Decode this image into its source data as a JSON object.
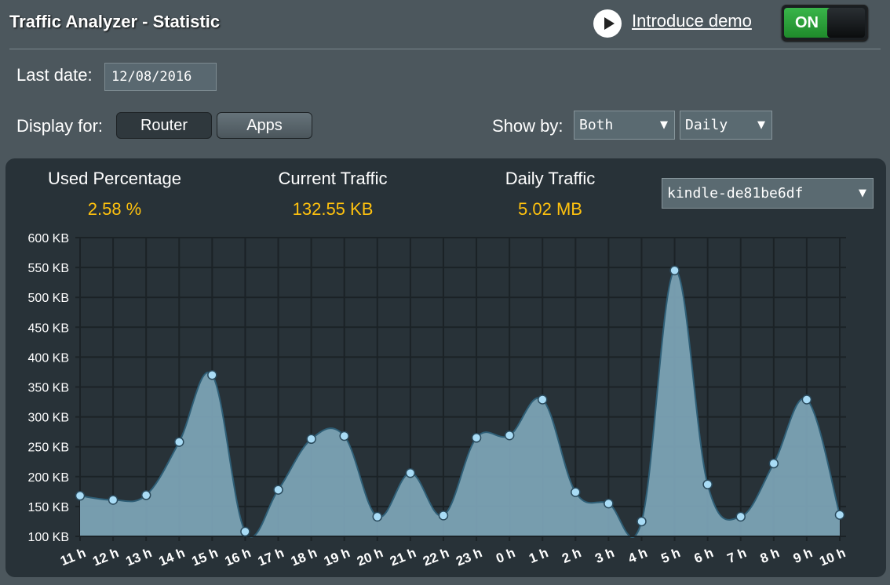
{
  "header": {
    "title": "Traffic Analyzer - Statistic",
    "demo_link": "Introduce demo",
    "toggle_label": "ON"
  },
  "filters": {
    "last_date_label": "Last date:",
    "last_date_value": "12/08/2016",
    "display_for_label": "Display for:",
    "display_options": [
      "Router",
      "Apps"
    ],
    "display_selected": "Router",
    "show_by_label": "Show by:",
    "direction_value": "Both",
    "period_value": "Daily"
  },
  "stats": {
    "used_percentage_label": "Used Percentage",
    "used_percentage_value": "2.58 %",
    "current_traffic_label": "Current Traffic",
    "current_traffic_value": "132.55 KB",
    "daily_traffic_label": "Daily Traffic",
    "daily_traffic_value": "5.02 MB"
  },
  "device_select": {
    "value": "kindle-de81be6df"
  },
  "colors": {
    "accent_value": "#ffc20e",
    "area_fill": "#7ea6b8",
    "point_fill": "#a9dcf6",
    "toggle_on": "#2fa83d"
  },
  "chart_data": {
    "type": "area",
    "y_unit": "KB",
    "ylim": [
      100,
      600
    ],
    "y_ticks": [
      "100 KB",
      "150 KB",
      "200 KB",
      "250 KB",
      "300 KB",
      "350 KB",
      "400 KB",
      "450 KB",
      "500 KB",
      "550 KB",
      "600 KB"
    ],
    "x": [
      "11 h",
      "12 h",
      "13 h",
      "14 h",
      "15 h",
      "16 h",
      "17 h",
      "18 h",
      "19 h",
      "20 h",
      "21 h",
      "22 h",
      "23 h",
      "0 h",
      "1 h",
      "2 h",
      "3 h",
      "4 h",
      "5 h",
      "6 h",
      "7 h",
      "8 h",
      "9 h",
      "10 h"
    ],
    "values": [
      168,
      161,
      169,
      258,
      370,
      108,
      178,
      263,
      268,
      133,
      206,
      135,
      265,
      269,
      329,
      174,
      155,
      125,
      545,
      187,
      133,
      222,
      329,
      136
    ],
    "grid": true
  }
}
